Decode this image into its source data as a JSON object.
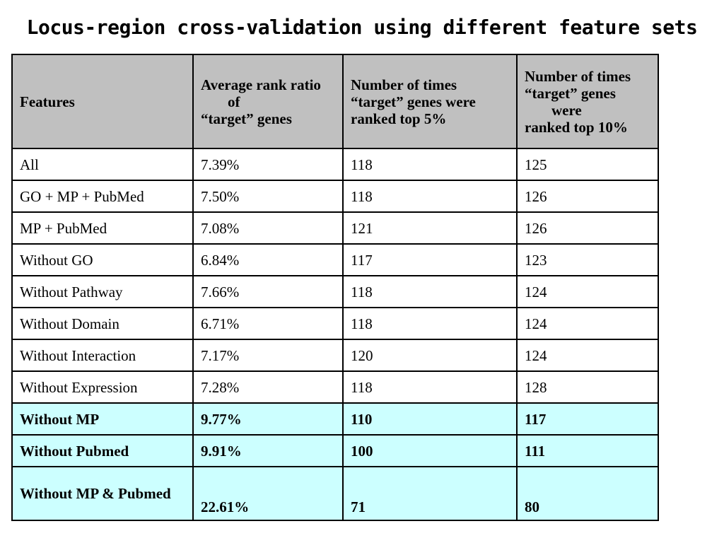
{
  "title": "Locus-region cross-validation using different feature sets",
  "table": {
    "headers": {
      "features": "Features",
      "avg_rank": [
        "Average rank ratio",
        "of",
        "“target” genes"
      ],
      "top5": [
        "Number of times",
        "“target” genes were",
        "ranked top 5%"
      ],
      "top10": [
        "Number of times",
        "“target” genes",
        "were",
        "ranked top 10%"
      ]
    },
    "rows": [
      {
        "feature": "All",
        "avg_rank": "7.39%",
        "top5": "118",
        "top10": "125"
      },
      {
        "feature": "GO + MP + PubMed",
        "avg_rank": "7.50%",
        "top5": "118",
        "top10": "126"
      },
      {
        "feature": "MP + PubMed",
        "avg_rank": "7.08%",
        "top5": "121",
        "top10": "126"
      },
      {
        "feature": "Without GO",
        "avg_rank": "6.84%",
        "top5": "117",
        "top10": "123"
      },
      {
        "feature": "Without Pathway",
        "avg_rank": "7.66%",
        "top5": "118",
        "top10": "124"
      },
      {
        "feature": "Without Domain",
        "avg_rank": "6.71%",
        "top5": "118",
        "top10": "124"
      },
      {
        "feature": "Without Interaction",
        "avg_rank": "7.17%",
        "top5": "120",
        "top10": "124"
      },
      {
        "feature": "Without Expression",
        "avg_rank": "7.28%",
        "top5": "118",
        "top10": "128"
      },
      {
        "feature": "Without MP",
        "avg_rank": "9.77%",
        "top5": "110",
        "top10": "117"
      },
      {
        "feature": "Without Pubmed",
        "avg_rank": "9.91%",
        "top5": "100",
        "top10": "111"
      },
      {
        "feature": "Without MP & Pubmed",
        "avg_rank": "22.61%",
        "top5": "71",
        "top10": "80"
      }
    ]
  },
  "colors": {
    "header_bg": "#c0c0c0",
    "highlight_bg": "#ccffff"
  }
}
